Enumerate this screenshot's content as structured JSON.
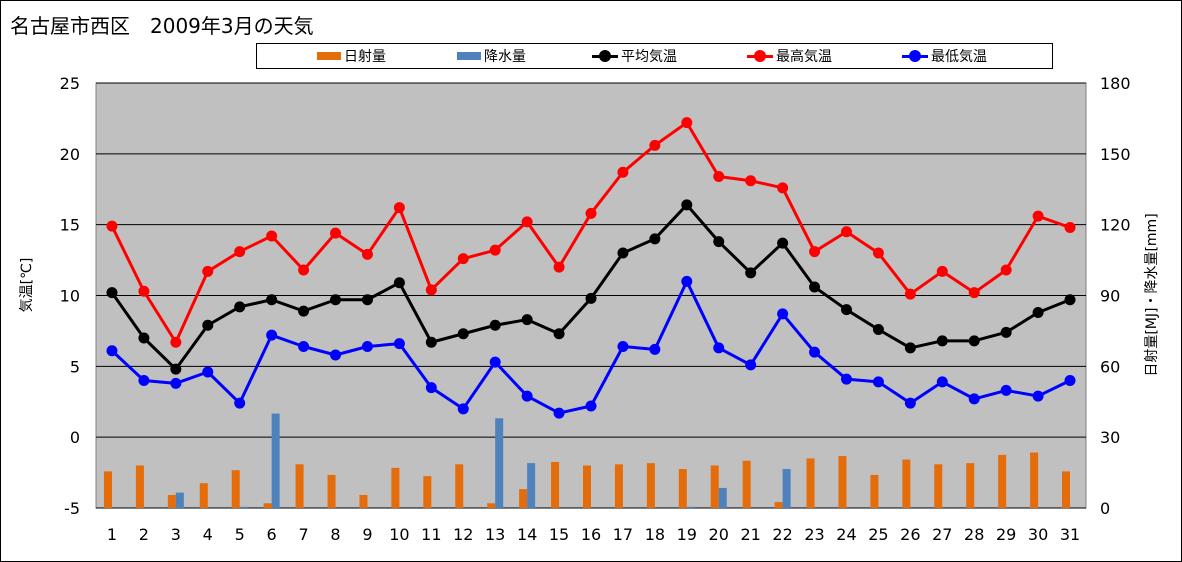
{
  "chart_data": {
    "type": "bar+line",
    "title": "名古屋市西区　2009年3月の天気",
    "ylabel_left": "気温[℃]",
    "ylabel_right": "日射量[MJ]・降水量[mm]",
    "categories": [
      "1",
      "2",
      "3",
      "4",
      "5",
      "6",
      "7",
      "8",
      "9",
      "10",
      "11",
      "12",
      "13",
      "14",
      "15",
      "16",
      "17",
      "18",
      "19",
      "20",
      "21",
      "22",
      "23",
      "24",
      "25",
      "26",
      "27",
      "28",
      "29",
      "30",
      "31"
    ],
    "y_left": {
      "min": -5,
      "max": 25,
      "ticks": [
        "25",
        "20",
        "15",
        "10",
        "5",
        "0",
        "-5"
      ]
    },
    "y_right": {
      "min": 0,
      "max": 180,
      "ticks": [
        "180",
        "150",
        "120",
        "90",
        "60",
        "30",
        "0"
      ]
    },
    "grid": true,
    "legend_position": "top",
    "series": [
      {
        "name": "日射量",
        "kind": "bar",
        "axis": "right",
        "color": "#e46c0a",
        "values": [
          15.5,
          18,
          5.5,
          10.5,
          16,
          2,
          18.5,
          14,
          5.5,
          17,
          13.5,
          18.5,
          2,
          8,
          19.5,
          18,
          18.5,
          19,
          16.5,
          18,
          20,
          2.5,
          21,
          22,
          14,
          20.5,
          18.5,
          19,
          22.5,
          23.5,
          15.5
        ]
      },
      {
        "name": "降水量",
        "kind": "bar",
        "axis": "right",
        "color": "#4f81bd",
        "values": [
          0,
          0,
          6.5,
          0,
          0.5,
          40,
          0,
          0,
          0,
          0,
          0,
          0,
          38,
          19,
          0,
          0,
          0,
          0,
          0.5,
          8.5,
          0,
          16.5,
          0,
          0,
          0,
          0,
          0,
          0,
          0,
          0,
          0
        ]
      },
      {
        "name": "平均気温",
        "kind": "line",
        "axis": "left",
        "color": "#000000",
        "values": [
          10.2,
          7.0,
          4.8,
          7.9,
          9.2,
          9.7,
          8.9,
          9.7,
          9.7,
          10.9,
          6.7,
          7.3,
          7.9,
          8.3,
          7.3,
          9.8,
          13.0,
          14.0,
          16.4,
          13.8,
          11.6,
          13.7,
          10.6,
          9.0,
          7.6,
          6.3,
          6.8,
          6.8,
          7.4,
          8.8,
          9.7
        ]
      },
      {
        "name": "最高気温",
        "kind": "line",
        "axis": "left",
        "color": "#ff0000",
        "values": [
          14.9,
          10.3,
          6.7,
          11.7,
          13.1,
          14.2,
          11.8,
          14.4,
          12.9,
          16.2,
          10.4,
          12.6,
          13.2,
          15.2,
          12.0,
          15.8,
          18.7,
          20.6,
          22.2,
          18.4,
          18.1,
          17.6,
          13.1,
          14.5,
          13.0,
          10.1,
          11.7,
          10.2,
          11.8,
          15.6,
          14.8
        ]
      },
      {
        "name": "最低気温",
        "kind": "line",
        "axis": "left",
        "color": "#0000ff",
        "values": [
          6.1,
          4.0,
          3.8,
          4.6,
          2.4,
          7.2,
          6.4,
          5.8,
          6.4,
          6.6,
          3.5,
          2.0,
          5.3,
          2.9,
          1.7,
          2.2,
          6.4,
          6.2,
          11.0,
          6.3,
          5.1,
          8.7,
          6.0,
          4.1,
          3.9,
          2.4,
          3.9,
          2.7,
          3.3,
          2.9,
          4.0
        ]
      }
    ]
  }
}
